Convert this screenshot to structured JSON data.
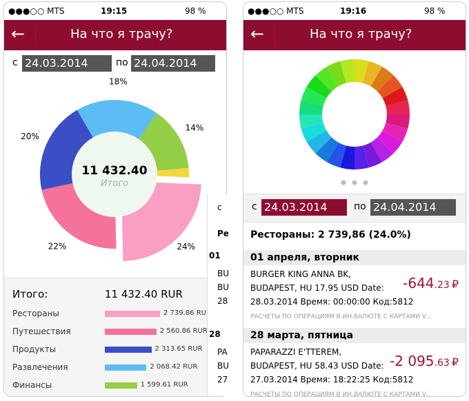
{
  "left_screen": {
    "status": {
      "carrier": "MTS",
      "time": "19:15",
      "battery": "98 %"
    },
    "header": {
      "title": "На что я трачу?"
    },
    "dates": {
      "from_label": "с",
      "from": "24.03.2014",
      "to_label": "по",
      "to": "24.04.2014"
    },
    "donut": {
      "center_value": "11 432.40",
      "center_caption": "Итого",
      "values": [
        24,
        22,
        20,
        18,
        14,
        2
      ],
      "value_labels": [
        "24%",
        "22%",
        "20%",
        "18%",
        "14%",
        null
      ],
      "colors": [
        "#fa9ec3",
        "#f5739a",
        "#3a4ec6",
        "#5bbdf3",
        "#94cd46",
        "#f5d63c"
      ]
    },
    "summary": {
      "label": "Итого:",
      "total": "11 432.40 RUR",
      "rows": [
        {
          "name": "Рестораны",
          "amount": 2739.86,
          "amount_label": "2 739.86 RUR",
          "color": "#fa9ec3"
        },
        {
          "name": "Путешествия",
          "amount": 2560.86,
          "amount_label": "2 560.86 RUR",
          "color": "#f5739a"
        },
        {
          "name": "Продукты",
          "amount": 2313.65,
          "amount_label": "2 313.65 RUR",
          "color": "#3a4ec6"
        },
        {
          "name": "Развлечения",
          "amount": 2068.42,
          "amount_label": "2 068.42 RUR",
          "color": "#5bbdf3"
        },
        {
          "name": "Финансы",
          "amount": 1599.61,
          "amount_label": "1 599.61 RUR",
          "color": "#94cd46"
        }
      ]
    },
    "peek": [
      "с",
      "Ре",
      "01",
      "BU",
      "BU",
      "28",
      "28",
      "PA",
      "BU",
      "27"
    ]
  },
  "right_screen": {
    "status": {
      "carrier": "MTS",
      "time": "19:16",
      "battery": "98 %"
    },
    "header": {
      "title": "На что я трачу?"
    },
    "dates": {
      "from_label": "с",
      "from": "24.03.2014",
      "to_label": "по",
      "to": "24.04.2014"
    },
    "category": "Рестораны: 2 739,86 (24.0%)",
    "groups": [
      {
        "date": "01 апреля, вторник",
        "item": {
          "lines": [
            "BURGER KING ANNA BK,",
            "BUDAPEST, HU 17.95 USD Date:",
            "28.03.2014 Время: 00:00:00 Код:5812"
          ],
          "amount": "-644",
          "cents": ".23",
          "currency": "₽",
          "note": "РАСЧЕТЫ ПО ОПЕРАЦИЯМ В ИН.ВАЛЮТЕ С КАРТАМИ V..."
        }
      },
      {
        "date": "28 марта, пятница",
        "item": {
          "lines": [
            "PAPARAZZI E'TTEREM,",
            "BUDAPEST, HU 58.43 USD Date:",
            "27.03.2014 Время: 18:22:25 Код:5812"
          ],
          "amount": "-2 095",
          "cents": ".63",
          "currency": "₽",
          "note": "РАСЧЕТЫ ПО ОПЕРАЦИЯМ В ИН.ВАЛЮТЕ С КАРТАМИ V..."
        }
      }
    ]
  }
}
